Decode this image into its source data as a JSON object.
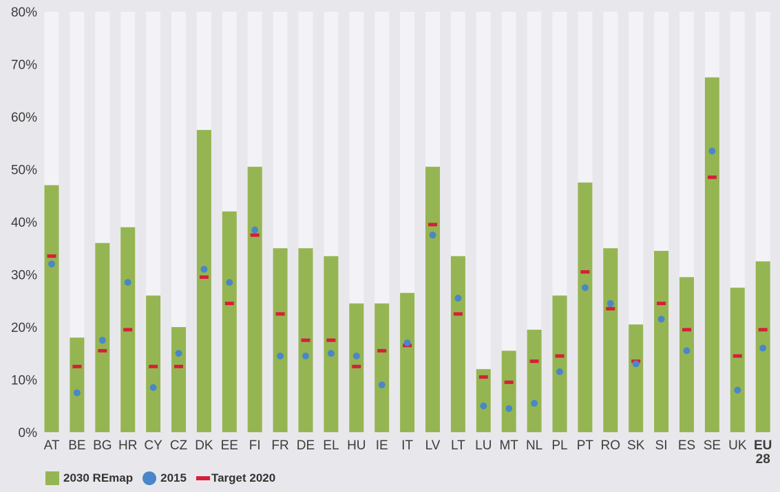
{
  "chart_data": {
    "type": "bar",
    "categories": [
      "AT",
      "BE",
      "BG",
      "HR",
      "CY",
      "CZ",
      "DK",
      "EE",
      "FI",
      "FR",
      "DE",
      "EL",
      "HU",
      "IE",
      "IT",
      "LV",
      "LT",
      "LU",
      "MT",
      "NL",
      "PL",
      "PT",
      "RO",
      "SK",
      "SI",
      "ES",
      "SE",
      "UK",
      "EU 28"
    ],
    "series": [
      {
        "name": "2030 REmap",
        "kind": "bar",
        "values": [
          47,
          18,
          36,
          39,
          26,
          20,
          57.5,
          42,
          50.5,
          35,
          35,
          33.5,
          24.5,
          24.5,
          26.5,
          50.5,
          33.5,
          12,
          15.5,
          19.5,
          26,
          47.5,
          35,
          20.5,
          34.5,
          29.5,
          67.5,
          27.5,
          32.5
        ]
      },
      {
        "name": "2015",
        "kind": "dot",
        "values": [
          32,
          7.5,
          17.5,
          28.5,
          8.5,
          15,
          31,
          28.5,
          38.5,
          14.5,
          14.5,
          15,
          14.5,
          9,
          17,
          37.5,
          25.5,
          5,
          4.5,
          5.5,
          11.5,
          27.5,
          24.5,
          13,
          21.5,
          15.5,
          53.5,
          8,
          16
        ]
      },
      {
        "name": "Target 2020",
        "kind": "dash",
        "values": [
          33.5,
          12.5,
          15.5,
          19.5,
          12.5,
          12.5,
          29.5,
          24.5,
          37.5,
          22.5,
          17.5,
          17.5,
          12.5,
          15.5,
          16.5,
          39.5,
          22.5,
          10.5,
          9.5,
          13.5,
          14.5,
          30.5,
          23.5,
          13.5,
          24.5,
          19.5,
          48.5,
          14.5,
          19.5
        ]
      }
    ],
    "ylim": [
      0,
      80
    ],
    "yticks": [
      0,
      10,
      20,
      30,
      40,
      50,
      60,
      70,
      80
    ],
    "ytick_labels": [
      "0%",
      "10%",
      "20%",
      "30%",
      "40%",
      "50%",
      "60%",
      "70%",
      "80%"
    ],
    "title": "",
    "xlabel": "",
    "ylabel": "",
    "colors": {
      "bar": "#95b552",
      "track": "#f3f3f7",
      "dot": "#4a86c8",
      "dash": "#d81e3a",
      "background": "#e8e8ec"
    },
    "legend_position": "bottom-left"
  },
  "legend": {
    "bar_label": "2030 REmap",
    "dot_label": "2015",
    "dash_label": "Target 2020"
  }
}
